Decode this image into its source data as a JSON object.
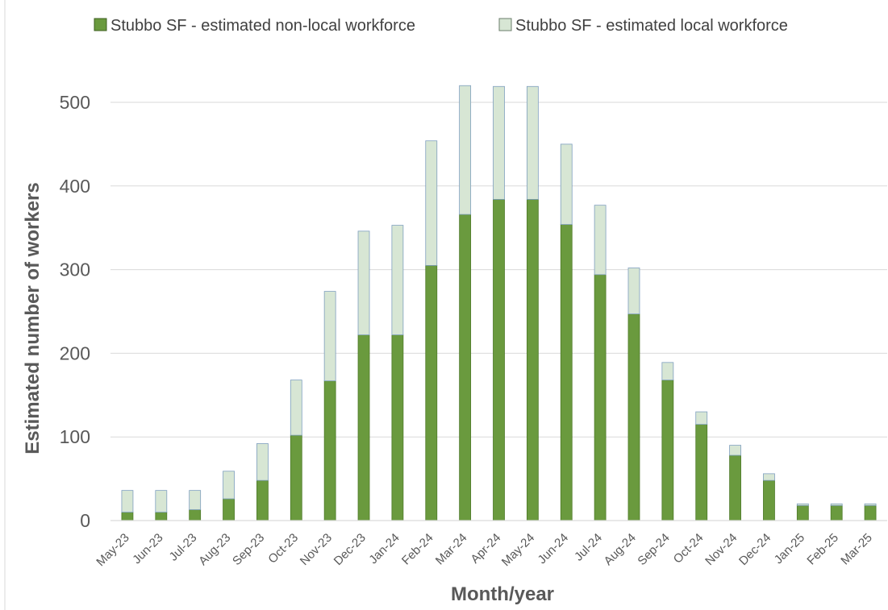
{
  "chart_data": {
    "type": "bar",
    "stacked": true,
    "categories": [
      "May-23",
      "Jun-23",
      "Jul-23",
      "Aug-23",
      "Sep-23",
      "Oct-23",
      "Nov-23",
      "Dec-23",
      "Jan-24",
      "Feb-24",
      "Mar-24",
      "Apr-24",
      "May-24",
      "Jun-24",
      "Jul-24",
      "Aug-24",
      "Sep-24",
      "Oct-24",
      "Nov-24",
      "Dec-24",
      "Jan-25",
      "Feb-25",
      "Mar-25"
    ],
    "series": [
      {
        "name": "Stubbo SF - estimated non-local workforce",
        "color": "#6a9a3e",
        "values": [
          10,
          10,
          13,
          26,
          48,
          102,
          167,
          222,
          222,
          305,
          366,
          384,
          384,
          354,
          294,
          247,
          168,
          115,
          78,
          48,
          18,
          18,
          18
        ]
      },
      {
        "name": "Stubbo SF - estimated local workforce",
        "color": "#d7e6d4",
        "values": [
          26,
          26,
          23,
          33,
          44,
          66,
          107,
          124,
          131,
          149,
          154,
          135,
          135,
          96,
          83,
          55,
          21,
          15,
          12,
          8,
          2,
          2,
          2
        ]
      }
    ],
    "xlabel": "Month/year",
    "ylabel": "Estimated number of workers",
    "ylim": [
      0,
      540
    ],
    "yticks": [
      0,
      100,
      200,
      300,
      400,
      500
    ],
    "grid": true,
    "legend_position": "top"
  }
}
